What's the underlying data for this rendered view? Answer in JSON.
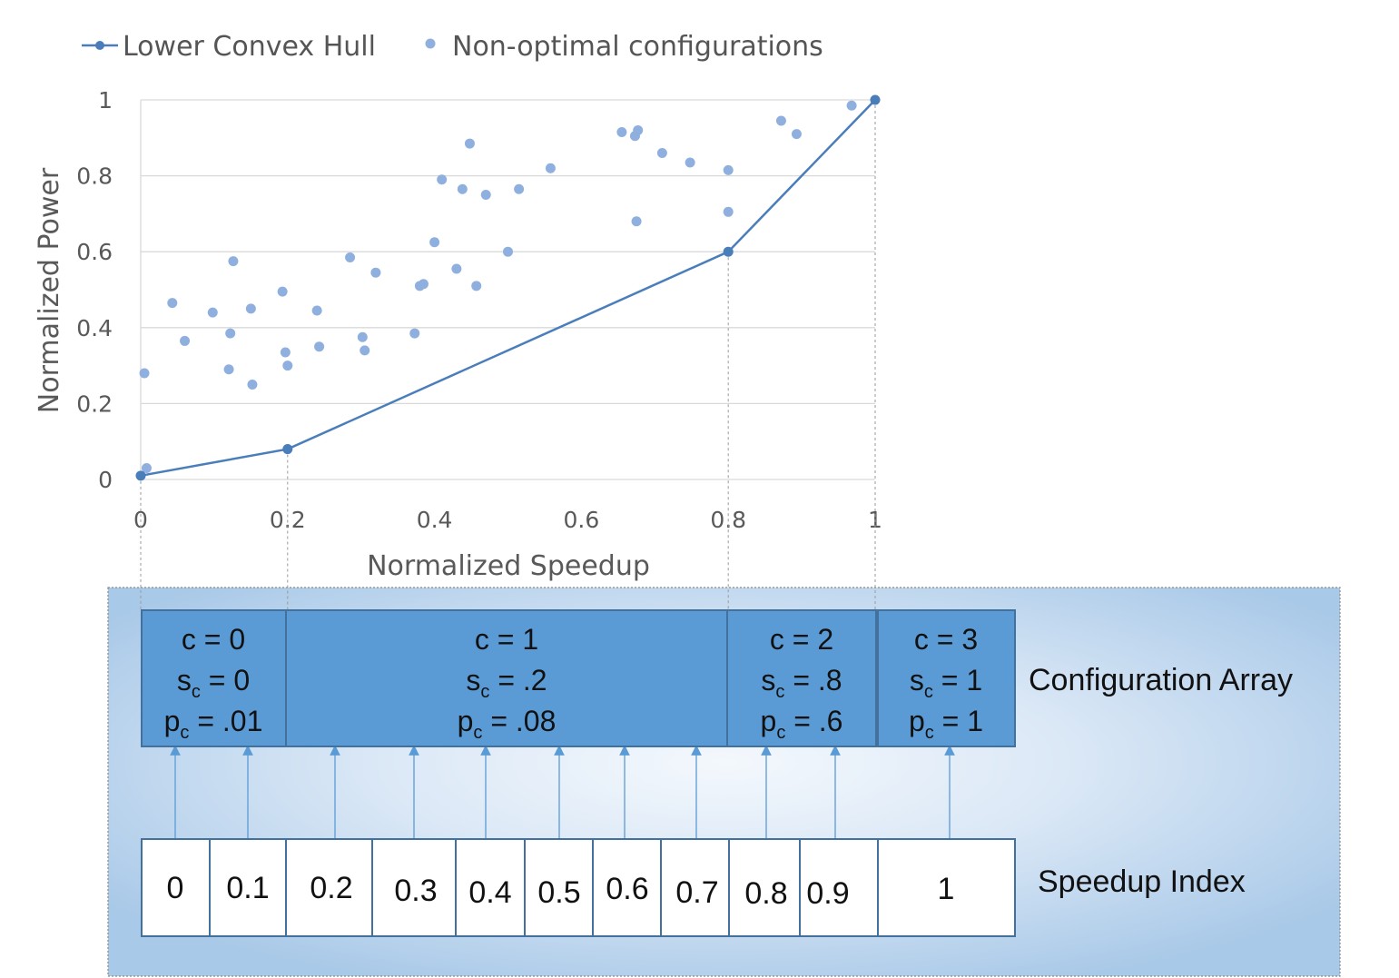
{
  "legend": {
    "hull_label": "Lower Convex Hull",
    "points_label": "Non-optimal configurations"
  },
  "chart_data": {
    "type": "scatter",
    "xlabel": "Normalized Speedup",
    "ylabel": "Normalized Power",
    "xlim": [
      0,
      1
    ],
    "ylim": [
      0,
      1
    ],
    "x_ticks": [
      "0",
      "0.2",
      "0.4",
      "0.6",
      "0.8",
      "1"
    ],
    "y_ticks": [
      "0",
      "0.2",
      "0.4",
      "0.6",
      "0.8",
      "1"
    ],
    "grid": "horizontal",
    "legend_position": "top-left",
    "series": [
      {
        "name": "Lower Convex Hull",
        "kind": "line",
        "color": "#4a7ebb",
        "points": [
          [
            0,
            0.01
          ],
          [
            0.2,
            0.08
          ],
          [
            0.8,
            0.6
          ],
          [
            1,
            1
          ]
        ]
      },
      {
        "name": "Non-optimal configurations",
        "kind": "scatter",
        "color": "#8fb0de",
        "points": [
          [
            0.005,
            0.28
          ],
          [
            0.008,
            0.03
          ],
          [
            0.043,
            0.465
          ],
          [
            0.06,
            0.365
          ],
          [
            0.098,
            0.44
          ],
          [
            0.12,
            0.29
          ],
          [
            0.122,
            0.385
          ],
          [
            0.126,
            0.575
          ],
          [
            0.15,
            0.45
          ],
          [
            0.152,
            0.25
          ],
          [
            0.193,
            0.495
          ],
          [
            0.197,
            0.335
          ],
          [
            0.2,
            0.3
          ],
          [
            0.24,
            0.445
          ],
          [
            0.243,
            0.35
          ],
          [
            0.285,
            0.585
          ],
          [
            0.302,
            0.375
          ],
          [
            0.305,
            0.34
          ],
          [
            0.32,
            0.545
          ],
          [
            0.373,
            0.385
          ],
          [
            0.38,
            0.51
          ],
          [
            0.385,
            0.515
          ],
          [
            0.4,
            0.625
          ],
          [
            0.41,
            0.79
          ],
          [
            0.43,
            0.555
          ],
          [
            0.438,
            0.765
          ],
          [
            0.448,
            0.885
          ],
          [
            0.457,
            0.51
          ],
          [
            0.47,
            0.75
          ],
          [
            0.5,
            0.6
          ],
          [
            0.515,
            0.765
          ],
          [
            0.558,
            0.82
          ],
          [
            0.655,
            0.915
          ],
          [
            0.673,
            0.905
          ],
          [
            0.675,
            0.68
          ],
          [
            0.677,
            0.92
          ],
          [
            0.71,
            0.86
          ],
          [
            0.748,
            0.835
          ],
          [
            0.8,
            0.815
          ],
          [
            0.8,
            0.705
          ],
          [
            0.872,
            0.945
          ],
          [
            0.893,
            0.91
          ],
          [
            0.968,
            0.985
          ]
        ]
      }
    ]
  },
  "config_array": {
    "label": "Configuration Array",
    "cells": [
      {
        "c": "c = 0",
        "s_pre": "s",
        "s_sub": "c",
        "s_post": " = 0",
        "p_pre": "p",
        "p_sub": "c",
        "p_post": " = .01"
      },
      {
        "c": "c = 1",
        "s_pre": "s",
        "s_sub": "c",
        "s_post": " = .2",
        "p_pre": "p",
        "p_sub": "c",
        "p_post": " = .08"
      },
      {
        "c": "c = 2",
        "s_pre": "s",
        "s_sub": "c",
        "s_post": " = .8",
        "p_pre": "p",
        "p_sub": "c",
        "p_post": " = .6"
      },
      {
        "c": "c = 3",
        "s_pre": "s",
        "s_sub": "c",
        "s_post": " = 1",
        "p_pre": "p",
        "p_sub": "c",
        "p_post": " = 1"
      }
    ]
  },
  "speedup_index": {
    "label": "Speedup Index",
    "cells": [
      "0",
      "0.1",
      "0.2",
      "0.3",
      "0.4",
      "0.5",
      "0.6",
      "0.7",
      "0.8",
      "0.9",
      "1"
    ]
  },
  "colors": {
    "cell_fill": "#5b9bd5",
    "cell_border": "#41719c",
    "hull_line": "#4a7ebb",
    "scatter_point": "#8fb0de",
    "grid": "#d9d9d9",
    "panel_gradient_center": "#f4f8fd",
    "panel_gradient_edge": "#a9c9e8",
    "arrow": "#5b9bd5"
  }
}
